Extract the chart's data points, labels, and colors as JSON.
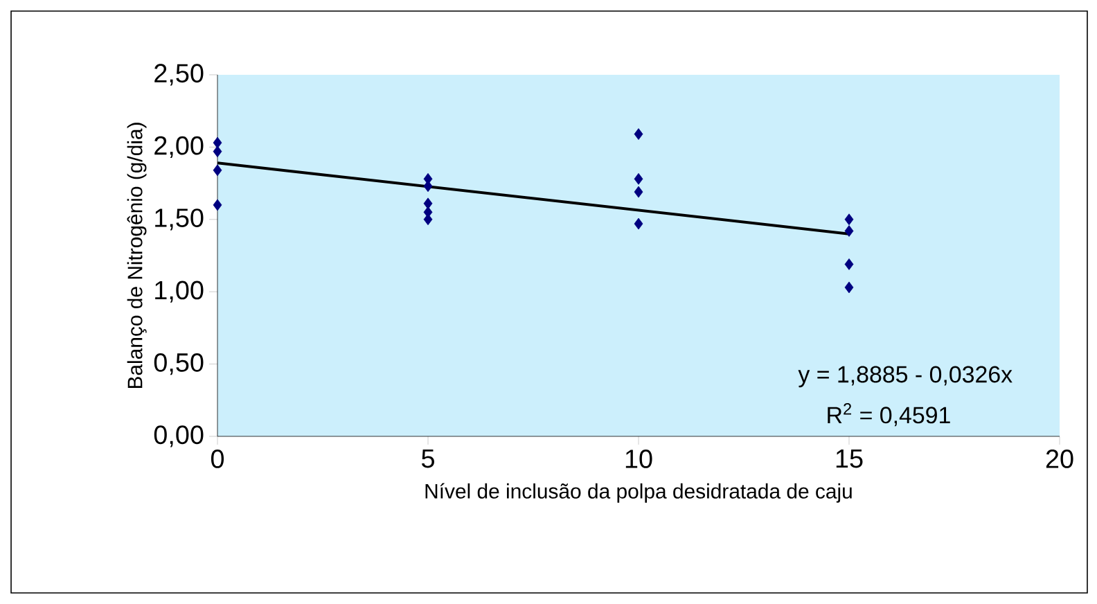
{
  "chart_data": {
    "type": "scatter",
    "xlabel": "Nível de inclusão da polpa desidratada de caju",
    "ylabel": "Balanço de Nitrogênio (g/dia)",
    "xlim": [
      0,
      20
    ],
    "xticks": [
      0,
      5,
      10,
      15,
      20
    ],
    "ylim": [
      0,
      2.5
    ],
    "yticks": [
      {
        "value": 0,
        "label": "0,00"
      },
      {
        "value": 0.5,
        "label": "0,50"
      },
      {
        "value": 1,
        "label": "1,00"
      },
      {
        "value": 1.5,
        "label": "1,50"
      },
      {
        "value": 2,
        "label": "2,00"
      },
      {
        "value": 2.5,
        "label": "2,50"
      }
    ],
    "grid": false,
    "series": [
      {
        "marker": "diamond",
        "color": "#000080",
        "x": [
          0,
          0,
          0,
          0,
          5,
          5,
          5,
          5,
          5,
          10,
          10,
          10,
          10,
          15,
          15,
          15,
          15
        ],
        "values": [
          2.03,
          1.97,
          1.84,
          1.6,
          1.78,
          1.73,
          1.61,
          1.55,
          1.5,
          2.09,
          1.78,
          1.69,
          1.47,
          1.5,
          1.42,
          1.19,
          1.03
        ]
      },
      {
        "type": "line",
        "marker": "none",
        "color": "#000000",
        "x": [
          0,
          15
        ],
        "values": [
          1.89,
          1.4
        ]
      }
    ],
    "annotations": [
      "y = 1,8885 - 0,0326x",
      "R$^{2}$ = 0,4591"
    ]
  }
}
